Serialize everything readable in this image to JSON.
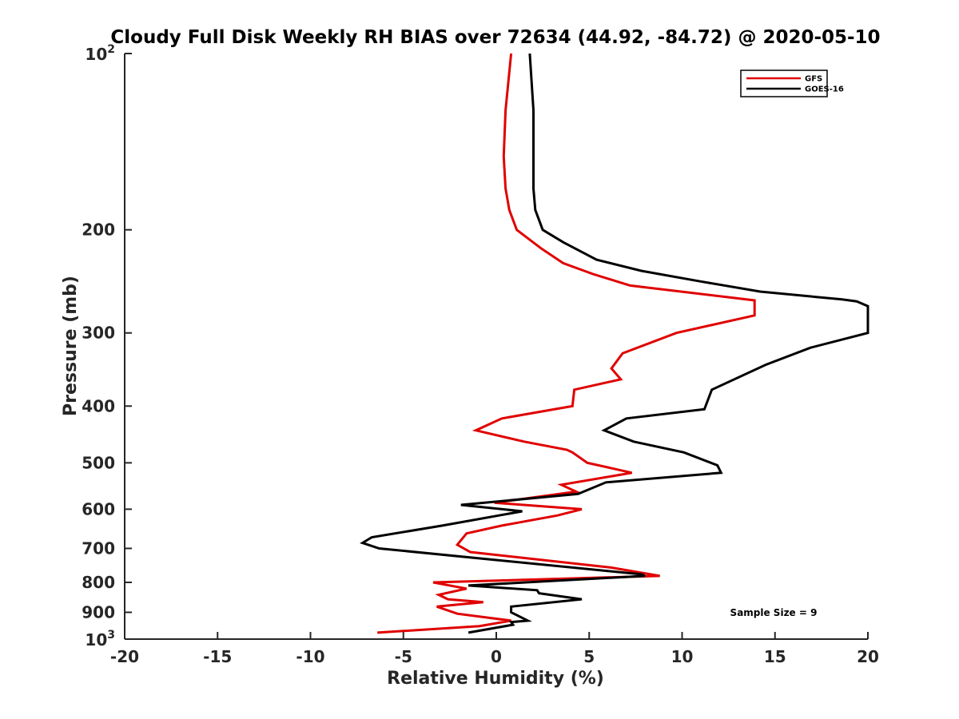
{
  "chart_data": {
    "type": "line",
    "title": "Cloudy Full Disk Weekly RH BIAS over 72634 (44.92, -84.72) @ 2020-05-10",
    "xlabel": "Relative Humidity (%)",
    "ylabel": "Pressure (mb)",
    "xlim": [
      -20,
      20
    ],
    "ylim": [
      100,
      1000
    ],
    "y_scale": "log",
    "y_reversed": true,
    "grid": false,
    "legend_position": "top-right",
    "x_ticks": [
      "-20",
      "-15",
      "-10",
      "-5",
      "0",
      "5",
      "10",
      "15",
      "20"
    ],
    "y_ticks": [
      {
        "value": 100,
        "base": "10",
        "exp": "2"
      },
      {
        "value": 200,
        "label": "200"
      },
      {
        "value": 300,
        "label": "300"
      },
      {
        "value": 400,
        "label": "400"
      },
      {
        "value": 500,
        "label": "500"
      },
      {
        "value": 600,
        "label": "600"
      },
      {
        "value": 700,
        "label": "700"
      },
      {
        "value": 800,
        "label": "800"
      },
      {
        "value": 900,
        "label": "900"
      },
      {
        "value": 1000,
        "base": "10",
        "exp": "3"
      }
    ],
    "series": [
      {
        "name": "GFS",
        "color": "#e00000",
        "points": [
          [
            0.8,
            100
          ],
          [
            0.5,
            125
          ],
          [
            0.4,
            150
          ],
          [
            0.5,
            170
          ],
          [
            0.7,
            185
          ],
          [
            1.1,
            200
          ],
          [
            2.4,
            215
          ],
          [
            3.6,
            228
          ],
          [
            5.2,
            238
          ],
          [
            7.2,
            249
          ],
          [
            13.9,
            264
          ],
          [
            13.9,
            280
          ],
          [
            9.7,
            300
          ],
          [
            6.8,
            325
          ],
          [
            6.2,
            345
          ],
          [
            6.7,
            360
          ],
          [
            4.2,
            375
          ],
          [
            4.1,
            400
          ],
          [
            0.3,
            420
          ],
          [
            -1.1,
            440
          ],
          [
            1.5,
            460
          ],
          [
            3.8,
            475
          ],
          [
            4.1,
            480
          ],
          [
            4.9,
            500
          ],
          [
            7.3,
            520
          ],
          [
            3.5,
            545
          ],
          [
            4.3,
            560
          ],
          [
            -0.1,
            585
          ],
          [
            4.6,
            600
          ],
          [
            3.3,
            615
          ],
          [
            0.3,
            640
          ],
          [
            -1.6,
            660
          ],
          [
            -2.1,
            690
          ],
          [
            -1.4,
            710
          ],
          [
            6.2,
            755
          ],
          [
            8.8,
            780
          ],
          [
            -3.4,
            800
          ],
          [
            -1.6,
            820
          ],
          [
            -3.1,
            840
          ],
          [
            -2.6,
            855
          ],
          [
            -0.7,
            865
          ],
          [
            -3.2,
            880
          ],
          [
            -2.1,
            905
          ],
          [
            0.8,
            930
          ],
          [
            -0.9,
            950
          ],
          [
            -6.4,
            975
          ]
        ]
      },
      {
        "name": "GOES-16",
        "color": "#000000",
        "points": [
          [
            1.8,
            100
          ],
          [
            2.0,
            125
          ],
          [
            2.0,
            150
          ],
          [
            2.0,
            170
          ],
          [
            2.1,
            185
          ],
          [
            2.5,
            200
          ],
          [
            3.6,
            210
          ],
          [
            5.4,
            225
          ],
          [
            7.8,
            235
          ],
          [
            11.0,
            245
          ],
          [
            14.2,
            255
          ],
          [
            18.6,
            263
          ],
          [
            19.4,
            265
          ],
          [
            20.0,
            270
          ],
          [
            20.0,
            300
          ],
          [
            16.9,
            318
          ],
          [
            14.5,
            340
          ],
          [
            11.6,
            375
          ],
          [
            11.2,
            405
          ],
          [
            7.0,
            420
          ],
          [
            5.8,
            440
          ],
          [
            7.4,
            460
          ],
          [
            10.1,
            480
          ],
          [
            11.9,
            505
          ],
          [
            12.1,
            520
          ],
          [
            5.9,
            540
          ],
          [
            4.4,
            565
          ],
          [
            -1.9,
            590
          ],
          [
            1.4,
            605
          ],
          [
            -2.9,
            640
          ],
          [
            -6.7,
            670
          ],
          [
            -7.2,
            685
          ],
          [
            -6.3,
            700
          ],
          [
            7.8,
            775
          ],
          [
            8.0,
            780
          ],
          [
            -1.5,
            810
          ],
          [
            2.2,
            825
          ],
          [
            2.3,
            835
          ],
          [
            4.6,
            855
          ],
          [
            0.8,
            880
          ],
          [
            0.8,
            900
          ],
          [
            1.7,
            930
          ],
          [
            0.8,
            935
          ],
          [
            0.9,
            945
          ],
          [
            -1.5,
            975
          ]
        ]
      }
    ],
    "annotations": [
      "Sample Size = 9"
    ]
  }
}
